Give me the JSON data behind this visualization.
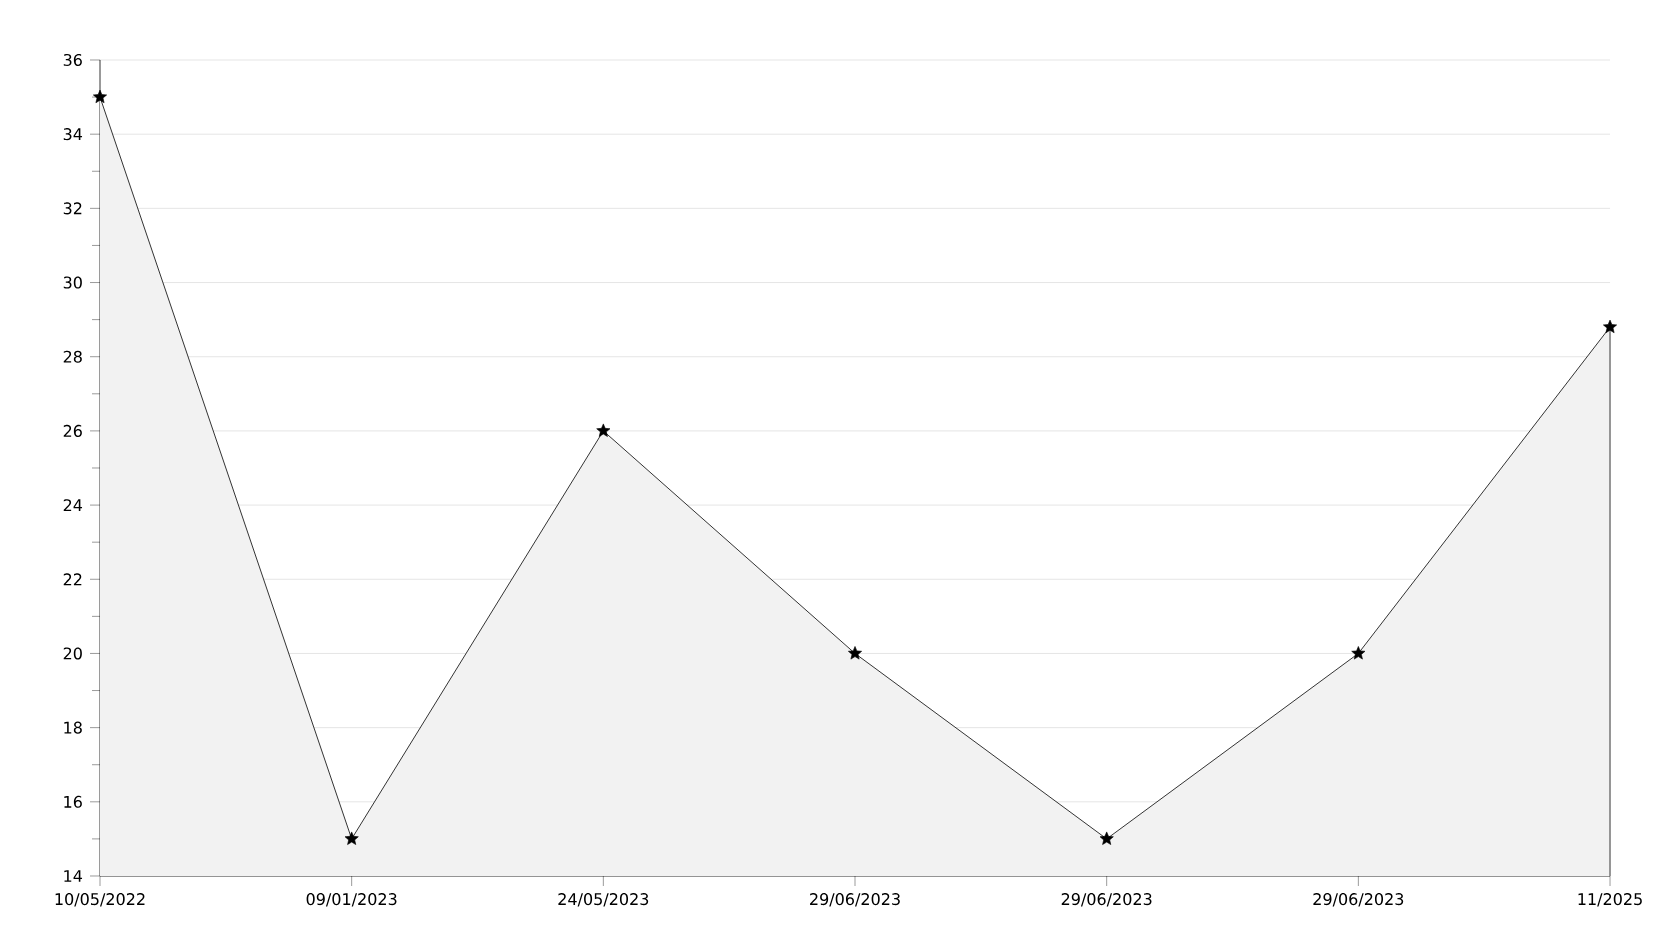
{
  "chart_data": {
    "type": "area",
    "categories": [
      "10/05/2022",
      "09/01/2023",
      "24/05/2023",
      "29/06/2023",
      "29/06/2023",
      "29/06/2023",
      "11/2025"
    ],
    "values": [
      35,
      15,
      26,
      20,
      15,
      20,
      28.8
    ],
    "color": "#000000",
    "ylim": [
      14,
      36
    ],
    "yticks": [
      14,
      16,
      18,
      20,
      22,
      24,
      26,
      28,
      30,
      32,
      34,
      36
    ],
    "grid": "y",
    "marker": "star",
    "line_style": "solid"
  }
}
